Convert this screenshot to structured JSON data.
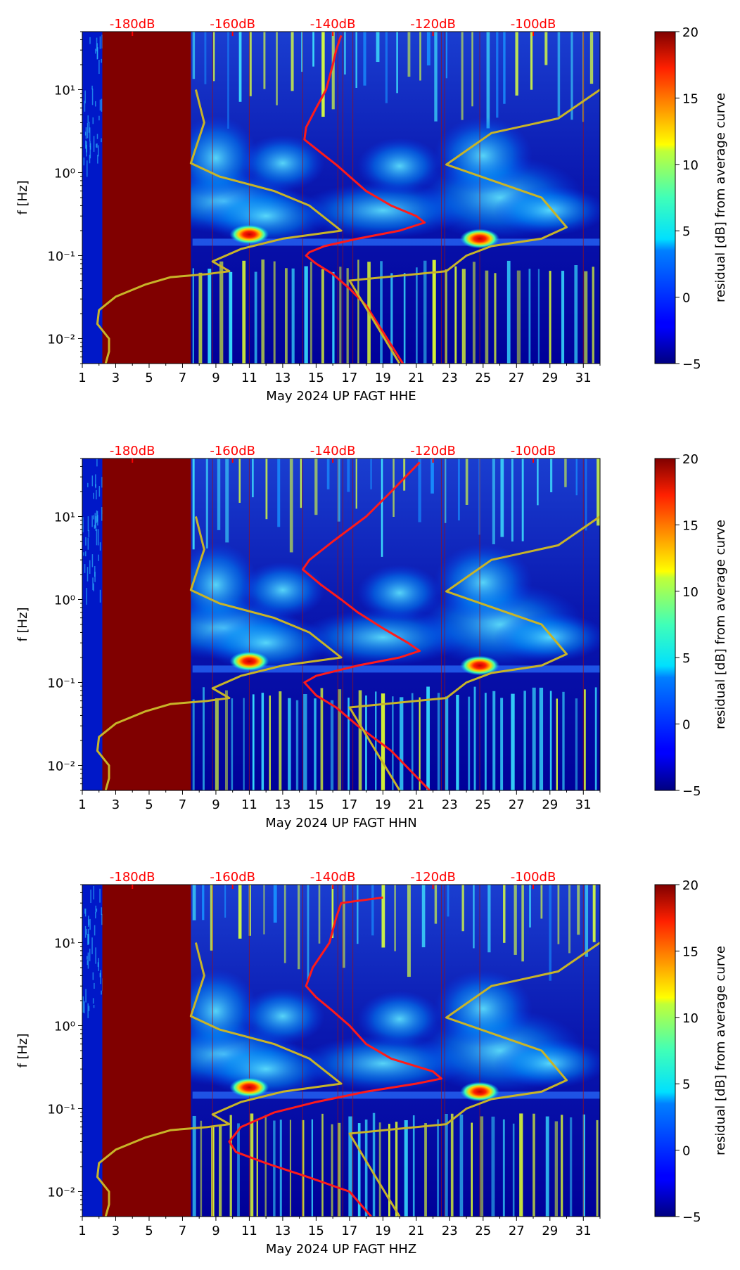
{
  "chart_data": [
    {
      "type": "heatmap",
      "xlabel": "May 2024 UP FAGT  HHE",
      "ylabel": "f [Hz]",
      "xlim": [
        1,
        32
      ],
      "ylim": [
        0.005,
        50
      ],
      "yscale": "log",
      "x_ticks": [
        "1",
        "3",
        "5",
        "7",
        "9",
        "11",
        "13",
        "15",
        "17",
        "19",
        "21",
        "23",
        "25",
        "27",
        "29",
        "31"
      ],
      "y_ticks": [
        "10⁻²",
        "10⁻¹",
        "10⁰",
        "10¹"
      ],
      "db_labels": [
        "-180dB",
        "-160dB",
        "-140dB",
        "-120dB",
        "-100dB"
      ],
      "colorbar": {
        "label": "residual [dB] from average curve",
        "range": [
          -5,
          20
        ],
        "ticks": [
          "−5",
          "0",
          "5",
          "10",
          "15",
          "20"
        ],
        "colormap": "jet"
      },
      "saturated_block": {
        "x_start": 2.2,
        "x_end": 7.5,
        "color": "#800000"
      },
      "events": [
        {
          "x": 11.0,
          "f": 0.18,
          "level": 20
        },
        {
          "x": 24.8,
          "f": 0.16,
          "level": 18
        }
      ],
      "series": [
        {
          "color": "#ff1a1a",
          "points": [
            [
              16.5,
              45
            ],
            [
              16.2,
              30
            ],
            [
              16.0,
              20
            ],
            [
              15.6,
              10
            ],
            [
              15.0,
              6
            ],
            [
              14.4,
              3.5
            ],
            [
              14.3,
              2.5
            ],
            [
              15.2,
              1.8
            ],
            [
              16.3,
              1.2
            ],
            [
              17.0,
              0.9
            ],
            [
              18.0,
              0.6
            ],
            [
              19.5,
              0.4
            ],
            [
              21.0,
              0.3
            ],
            [
              21.5,
              0.25
            ],
            [
              20.0,
              0.2
            ],
            [
              17.5,
              0.16
            ],
            [
              15.5,
              0.13
            ],
            [
              14.6,
              0.11
            ],
            [
              14.4,
              0.1
            ],
            [
              15.0,
              0.08
            ],
            [
              16.0,
              0.06
            ],
            [
              17.0,
              0.04
            ],
            [
              18.0,
              0.025
            ],
            [
              19.0,
              0.012
            ],
            [
              20.2,
              0.005
            ]
          ]
        },
        {
          "color": "#c8b428",
          "points": [
            [
              7.8,
              10
            ],
            [
              8.3,
              4
            ],
            [
              7.5,
              1.3
            ],
            [
              9.2,
              0.9
            ],
            [
              12.5,
              0.6
            ],
            [
              14.6,
              0.4
            ],
            [
              16.5,
              0.2
            ],
            [
              13.0,
              0.16
            ],
            [
              10.5,
              0.12
            ],
            [
              8.8,
              0.085
            ],
            [
              9.8,
              0.065
            ],
            [
              8.5,
              0.06
            ],
            [
              6.3,
              0.055
            ],
            [
              4.8,
              0.045
            ],
            [
              3.0,
              0.032
            ],
            [
              2.0,
              0.022
            ],
            [
              1.9,
              0.015
            ],
            [
              2.6,
              0.01
            ],
            [
              2.6,
              0.007
            ],
            [
              2.4,
              0.005
            ]
          ]
        },
        {
          "color": "#c8b428",
          "points": [
            [
              32,
              10
            ],
            [
              29.5,
              4.5
            ],
            [
              25.5,
              3
            ],
            [
              22.8,
              1.25
            ],
            [
              28.5,
              0.5
            ],
            [
              30.0,
              0.22
            ],
            [
              28.5,
              0.16
            ],
            [
              25.5,
              0.13
            ],
            [
              24.0,
              0.1
            ],
            [
              22.8,
              0.065
            ],
            [
              17.0,
              0.05
            ],
            [
              20.0,
              0.005
            ]
          ]
        }
      ]
    },
    {
      "type": "heatmap",
      "xlabel": "May 2024 UP FAGT  HHN",
      "ylabel": "f [Hz]",
      "xlim": [
        1,
        32
      ],
      "ylim": [
        0.005,
        50
      ],
      "yscale": "log",
      "x_ticks": [
        "1",
        "3",
        "5",
        "7",
        "9",
        "11",
        "13",
        "15",
        "17",
        "19",
        "21",
        "23",
        "25",
        "27",
        "29",
        "31"
      ],
      "y_ticks": [
        "10⁻²",
        "10⁻¹",
        "10⁰",
        "10¹"
      ],
      "db_labels": [
        "-180dB",
        "-160dB",
        "-140dB",
        "-120dB",
        "-100dB"
      ],
      "colorbar": {
        "label": "residual [dB] from average curve",
        "range": [
          -5,
          20
        ],
        "ticks": [
          "−5",
          "0",
          "5",
          "10",
          "15",
          "20"
        ],
        "colormap": "jet"
      },
      "saturated_block": {
        "x_start": 2.2,
        "x_end": 7.5,
        "color": "#800000"
      },
      "events": [
        {
          "x": 11.0,
          "f": 0.18,
          "level": 20
        },
        {
          "x": 24.8,
          "f": 0.16,
          "level": 18
        }
      ],
      "series": [
        {
          "color": "#ff1a1a",
          "points": [
            [
              21.2,
              45
            ],
            [
              19.5,
              20
            ],
            [
              18.0,
              10
            ],
            [
              16.0,
              5
            ],
            [
              14.6,
              3
            ],
            [
              14.2,
              2.3
            ],
            [
              15.3,
              1.5
            ],
            [
              16.5,
              1.0
            ],
            [
              17.5,
              0.7
            ],
            [
              19.0,
              0.45
            ],
            [
              20.5,
              0.3
            ],
            [
              21.2,
              0.24
            ],
            [
              20.0,
              0.2
            ],
            [
              17.5,
              0.16
            ],
            [
              15.0,
              0.12
            ],
            [
              14.3,
              0.1
            ],
            [
              15.0,
              0.07
            ],
            [
              16.2,
              0.05
            ],
            [
              17.5,
              0.03
            ],
            [
              19.5,
              0.015
            ],
            [
              21.8,
              0.005
            ]
          ]
        },
        {
          "color": "#c8b428",
          "points": [
            [
              7.8,
              10
            ],
            [
              8.3,
              4
            ],
            [
              7.5,
              1.3
            ],
            [
              9.2,
              0.9
            ],
            [
              12.5,
              0.6
            ],
            [
              14.6,
              0.4
            ],
            [
              16.5,
              0.2
            ],
            [
              13.0,
              0.16
            ],
            [
              10.5,
              0.12
            ],
            [
              8.8,
              0.085
            ],
            [
              9.8,
              0.065
            ],
            [
              8.5,
              0.06
            ],
            [
              6.3,
              0.055
            ],
            [
              4.8,
              0.045
            ],
            [
              3.0,
              0.032
            ],
            [
              2.0,
              0.022
            ],
            [
              1.9,
              0.015
            ],
            [
              2.6,
              0.01
            ],
            [
              2.6,
              0.007
            ],
            [
              2.4,
              0.005
            ]
          ]
        },
        {
          "color": "#c8b428",
          "points": [
            [
              32,
              10
            ],
            [
              29.5,
              4.5
            ],
            [
              25.5,
              3
            ],
            [
              22.8,
              1.25
            ],
            [
              28.5,
              0.5
            ],
            [
              30.0,
              0.22
            ],
            [
              28.5,
              0.16
            ],
            [
              25.5,
              0.13
            ],
            [
              24.0,
              0.1
            ],
            [
              22.8,
              0.065
            ],
            [
              17.0,
              0.05
            ],
            [
              20.0,
              0.005
            ]
          ]
        }
      ]
    },
    {
      "type": "heatmap",
      "xlabel": "May 2024 UP FAGT  HHZ",
      "ylabel": "f [Hz]",
      "xlim": [
        1,
        32
      ],
      "ylim": [
        0.005,
        50
      ],
      "yscale": "log",
      "x_ticks": [
        "1",
        "3",
        "5",
        "7",
        "9",
        "11",
        "13",
        "15",
        "17",
        "19",
        "21",
        "23",
        "25",
        "27",
        "29",
        "31"
      ],
      "y_ticks": [
        "10⁻²",
        "10⁻¹",
        "10⁰",
        "10¹"
      ],
      "db_labels": [
        "-180dB",
        "-160dB",
        "-140dB",
        "-120dB",
        "-100dB"
      ],
      "colorbar": {
        "label": "residual [dB] from average curve",
        "range": [
          -5,
          20
        ],
        "ticks": [
          "−5",
          "0",
          "5",
          "10",
          "15",
          "20"
        ],
        "colormap": "jet"
      },
      "saturated_block": {
        "x_start": 2.2,
        "x_end": 7.5,
        "color": "#800000"
      },
      "events": [
        {
          "x": 11.0,
          "f": 0.18,
          "level": 20
        },
        {
          "x": 24.8,
          "f": 0.16,
          "level": 18
        }
      ],
      "series": [
        {
          "color": "#ff1a1a",
          "points": [
            [
              19.0,
              35
            ],
            [
              16.5,
              30
            ],
            [
              16.2,
              20
            ],
            [
              15.8,
              10
            ],
            [
              14.8,
              5
            ],
            [
              14.4,
              3
            ],
            [
              15.0,
              2.2
            ],
            [
              16.0,
              1.5
            ],
            [
              17.0,
              1.0
            ],
            [
              18.0,
              0.6
            ],
            [
              19.5,
              0.4
            ],
            [
              22.0,
              0.28
            ],
            [
              22.5,
              0.23
            ],
            [
              21.0,
              0.2
            ],
            [
              18.0,
              0.16
            ],
            [
              15.0,
              0.12
            ],
            [
              12.5,
              0.09
            ],
            [
              10.5,
              0.06
            ],
            [
              9.8,
              0.04
            ],
            [
              10.2,
              0.03
            ],
            [
              12.0,
              0.022
            ],
            [
              14.5,
              0.015
            ],
            [
              17.0,
              0.01
            ],
            [
              18.3,
              0.005
            ]
          ]
        },
        {
          "color": "#c8b428",
          "points": [
            [
              7.8,
              10
            ],
            [
              8.3,
              4
            ],
            [
              7.5,
              1.3
            ],
            [
              9.2,
              0.9
            ],
            [
              12.5,
              0.6
            ],
            [
              14.6,
              0.4
            ],
            [
              16.5,
              0.2
            ],
            [
              13.0,
              0.16
            ],
            [
              10.5,
              0.12
            ],
            [
              8.8,
              0.085
            ],
            [
              9.8,
              0.065
            ],
            [
              8.5,
              0.06
            ],
            [
              6.3,
              0.055
            ],
            [
              4.8,
              0.045
            ],
            [
              3.0,
              0.032
            ],
            [
              2.0,
              0.022
            ],
            [
              1.9,
              0.015
            ],
            [
              2.6,
              0.01
            ],
            [
              2.6,
              0.007
            ],
            [
              2.4,
              0.005
            ]
          ]
        },
        {
          "color": "#c8b428",
          "points": [
            [
              32,
              10
            ],
            [
              29.5,
              4.5
            ],
            [
              25.5,
              3
            ],
            [
              22.8,
              1.25
            ],
            [
              28.5,
              0.5
            ],
            [
              30.0,
              0.22
            ],
            [
              28.5,
              0.16
            ],
            [
              25.5,
              0.13
            ],
            [
              24.0,
              0.1
            ],
            [
              22.8,
              0.065
            ],
            [
              17.0,
              0.05
            ],
            [
              20.0,
              0.005
            ]
          ]
        }
      ]
    }
  ]
}
